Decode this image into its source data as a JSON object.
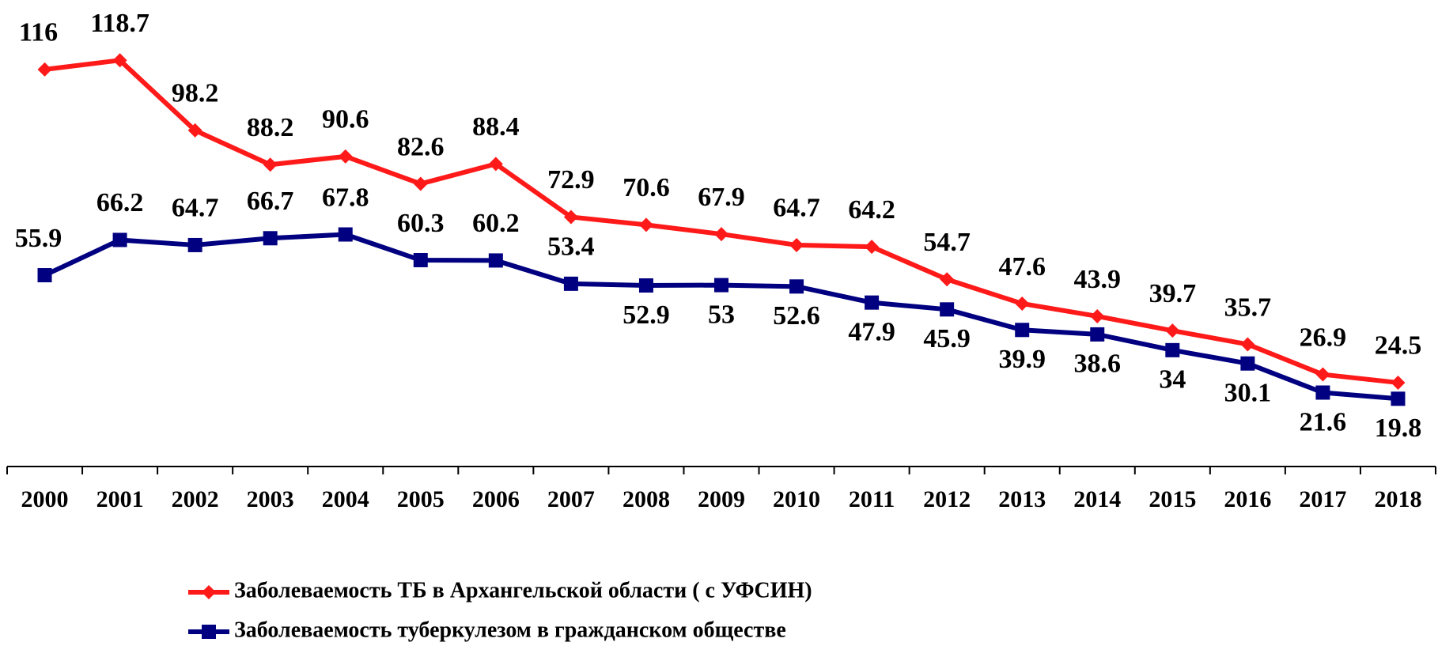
{
  "chart_data": {
    "type": "line",
    "categories": [
      "2000",
      "2001",
      "2002",
      "2003",
      "2004",
      "2005",
      "2006",
      "2007",
      "2008",
      "2009",
      "2010",
      "2011",
      "2012",
      "2013",
      "2014",
      "2015",
      "2016",
      "2017",
      "2018"
    ],
    "series": [
      {
        "name": "Заболеваемость ТБ в Архангельской области ( с УФСИН)",
        "color": "#ff1a1a",
        "marker": "diamond",
        "values": [
          116,
          118.7,
          98.2,
          88.2,
          90.6,
          82.6,
          88.4,
          72.9,
          70.6,
          67.9,
          64.7,
          64.2,
          54.7,
          47.6,
          43.9,
          39.7,
          35.7,
          26.9,
          24.5
        ]
      },
      {
        "name": "Заболеваемость туберкулезом в гражданском обществе",
        "color": "#000080",
        "marker": "square",
        "values": [
          55.9,
          66.2,
          64.7,
          66.7,
          67.8,
          60.3,
          60.2,
          53.4,
          52.9,
          53,
          52.6,
          47.9,
          45.9,
          39.9,
          38.6,
          34,
          30.1,
          21.6,
          19.8
        ]
      }
    ],
    "ylim": [
      0,
      140
    ],
    "grid": false
  }
}
